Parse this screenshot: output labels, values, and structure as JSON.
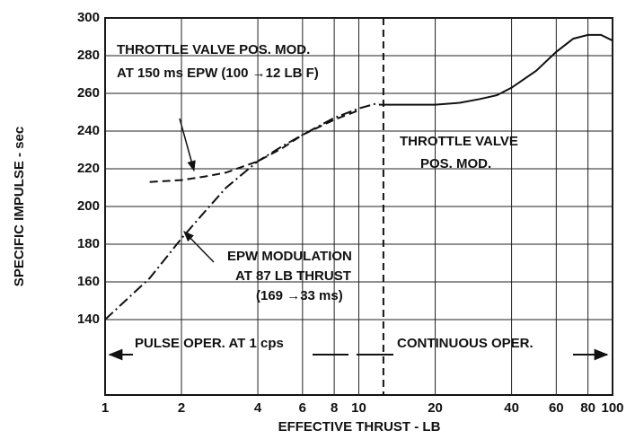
{
  "chart_data": {
    "type": "line",
    "xlabel": "EFFECTIVE THRUST - LB",
    "ylabel": "SPECIFIC IMPULSE - sec",
    "xscale": "log",
    "xlim": [
      1,
      100
    ],
    "ylim": [
      100,
      300
    ],
    "xticks": [
      1,
      2,
      4,
      6,
      8,
      10,
      20,
      40,
      60,
      80,
      100
    ],
    "yticks": [
      140,
      160,
      180,
      200,
      220,
      240,
      260,
      280,
      300
    ],
    "grid": true,
    "vlines": [
      12.5
    ],
    "series": [
      {
        "color": "#111111",
        "dash": "solid",
        "x": [
          12,
          15,
          20,
          25,
          30,
          35,
          40,
          50,
          60,
          70,
          80,
          90,
          100
        ],
        "values": [
          254,
          254,
          254,
          255,
          257,
          259,
          263,
          272,
          282,
          289,
          291,
          291,
          288
        ]
      },
      {
        "color": "#111111",
        "dash": "dashdot",
        "x": [
          1,
          1.5,
          2,
          2.5,
          3,
          4,
          5,
          6,
          8,
          10,
          12
        ],
        "values": [
          140,
          162,
          183,
          198,
          210,
          224,
          232,
          238,
          247,
          252,
          255
        ]
      },
      {
        "color": "#111111",
        "dash": "dashed",
        "x": [
          1.5,
          2,
          2.5,
          3,
          4,
          5,
          6,
          8,
          10
        ],
        "values": [
          213,
          214,
          216,
          218,
          224,
          231,
          238,
          246,
          251
        ]
      }
    ],
    "annotations": [
      "THROTTLE VALVE POS. MOD.",
      "AT 150 ms EPW (100 →12 LB F)",
      "THROTTLE VALVE",
      "POS. MOD.",
      "EPW MODULATION",
      "AT 87 LB THRUST",
      "(169 →33 ms)",
      "PULSE OPER. AT 1 cps",
      "CONTINUOUS OPER."
    ]
  }
}
